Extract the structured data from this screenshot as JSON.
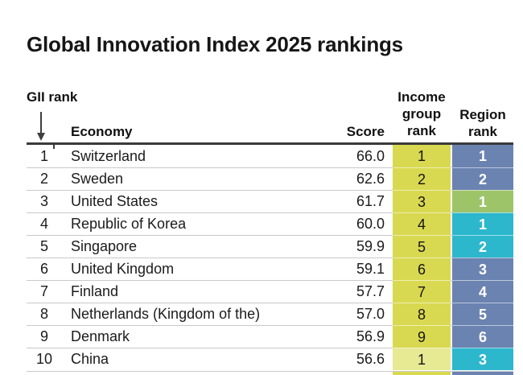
{
  "title": "Global Innovation Index 2025 rankings",
  "table": {
    "headers": {
      "gii_rank": "GII rank",
      "economy": "Economy",
      "score": "Score",
      "income_group_rank": [
        "Income",
        "group",
        "rank"
      ],
      "region_rank": [
        "Region",
        "rank"
      ]
    },
    "icons": {
      "sort_arrow": "down-arrow-icon"
    },
    "colors": {
      "income_high": "#d8d951",
      "income_upper_middle": "#e7e993",
      "region_europe": "#6b83b1",
      "region_north_america": "#9ec46a",
      "region_seao": "#2cb7cd",
      "rule": "#3a3a3a",
      "hairline": "#c9c9c9"
    },
    "rows": [
      {
        "rank": "1",
        "economy": "Switzerland",
        "score": "66.0",
        "income_rank": "1",
        "income_color": "#d8d951",
        "region_rank": "1",
        "region_color": "#6b83b1"
      },
      {
        "rank": "2",
        "economy": "Sweden",
        "score": "62.6",
        "income_rank": "2",
        "income_color": "#d8d951",
        "region_rank": "2",
        "region_color": "#6b83b1"
      },
      {
        "rank": "3",
        "economy": "United States",
        "score": "61.7",
        "income_rank": "3",
        "income_color": "#d8d951",
        "region_rank": "1",
        "region_color": "#9ec46a"
      },
      {
        "rank": "4",
        "economy": "Republic of Korea",
        "score": "60.0",
        "income_rank": "4",
        "income_color": "#d8d951",
        "region_rank": "1",
        "region_color": "#2cb7cd"
      },
      {
        "rank": "5",
        "economy": "Singapore",
        "score": "59.9",
        "income_rank": "5",
        "income_color": "#d8d951",
        "region_rank": "2",
        "region_color": "#2cb7cd"
      },
      {
        "rank": "6",
        "economy": "United Kingdom",
        "score": "59.1",
        "income_rank": "6",
        "income_color": "#d8d951",
        "region_rank": "3",
        "region_color": "#6b83b1"
      },
      {
        "rank": "7",
        "economy": "Finland",
        "score": "57.7",
        "income_rank": "7",
        "income_color": "#d8d951",
        "region_rank": "4",
        "region_color": "#6b83b1"
      },
      {
        "rank": "8",
        "economy": "Netherlands (Kingdom of the)",
        "score": "57.0",
        "income_rank": "8",
        "income_color": "#d8d951",
        "region_rank": "5",
        "region_color": "#6b83b1"
      },
      {
        "rank": "9",
        "economy": "Denmark",
        "score": "56.9",
        "income_rank": "9",
        "income_color": "#d8d951",
        "region_rank": "6",
        "region_color": "#6b83b1"
      },
      {
        "rank": "10",
        "economy": "China",
        "score": "56.6",
        "income_rank": "1",
        "income_color": "#e7e993",
        "region_rank": "3",
        "region_color": "#2cb7cd"
      }
    ],
    "next_row_partial": {
      "income_color": "#d8d951",
      "region_color": "#6b83b1"
    }
  },
  "chart_data": {
    "type": "table",
    "title": "Global Innovation Index 2025 rankings",
    "columns": [
      "GII rank",
      "Economy",
      "Score",
      "Income group rank",
      "Region rank"
    ],
    "rows": [
      [
        1,
        "Switzerland",
        66.0,
        1,
        1
      ],
      [
        2,
        "Sweden",
        62.6,
        2,
        2
      ],
      [
        3,
        "United States",
        61.7,
        3,
        1
      ],
      [
        4,
        "Republic of Korea",
        60.0,
        4,
        1
      ],
      [
        5,
        "Singapore",
        59.9,
        5,
        2
      ],
      [
        6,
        "United Kingdom",
        59.1,
        6,
        3
      ],
      [
        7,
        "Finland",
        57.7,
        7,
        4
      ],
      [
        8,
        "Netherlands (Kingdom of the)",
        57.0,
        8,
        5
      ],
      [
        9,
        "Denmark",
        56.9,
        9,
        6
      ],
      [
        10,
        "China",
        56.6,
        1,
        3
      ]
    ],
    "layout_hints": {
      "income_group_rank_column_shading": "yellow (light yellow = upper-middle income for China)",
      "region_rank_column_shading": "blue = Europe, green = North America, teal = South East Asia/East Asia/Oceania",
      "sort_indicator": "down arrow under GII rank header"
    }
  }
}
